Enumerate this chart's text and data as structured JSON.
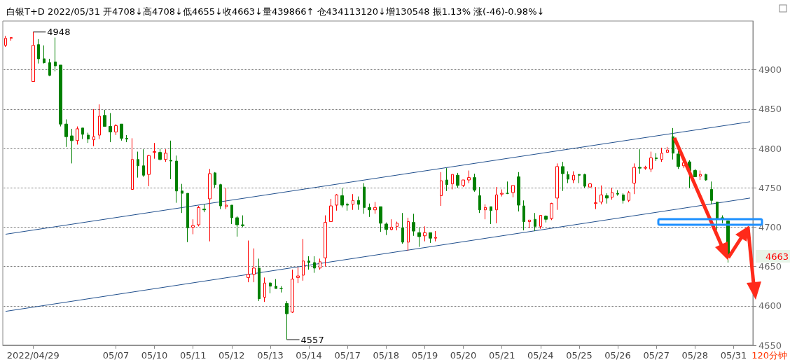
{
  "chart_data": {
    "type": "candlestick",
    "title": "白银T+D 2022/05/31 开4708↓高4708↓低4655↓收4663↓量439866↑ 仓434113120↓增130548 振1.13% 涨(-46)-0.98%↓",
    "categories": [
      null,
      null,
      null,
      null,
      null,
      "2022/04/29",
      null,
      null,
      null,
      null,
      null,
      null,
      null,
      null,
      null,
      null,
      null,
      null,
      null,
      null,
      "05/07",
      null,
      null,
      null,
      null,
      null,
      null,
      "05/10",
      null,
      null,
      null,
      null,
      null,
      null,
      "05/11",
      null,
      null,
      null,
      null,
      null,
      null,
      "05/12",
      null,
      null,
      null,
      null,
      null,
      null,
      "05/13",
      null,
      null,
      null,
      null,
      null,
      null,
      "05/14",
      null,
      null,
      null,
      null,
      null,
      null,
      "05/17",
      null,
      null,
      null,
      null,
      null,
      null,
      "05/18",
      null,
      null,
      null,
      null,
      null,
      null,
      "05/19",
      null,
      null,
      null,
      null,
      null,
      null,
      "05/20",
      null,
      null,
      null,
      null,
      null,
      null,
      "05/21",
      null,
      null,
      null,
      null,
      null,
      null,
      "05/24",
      null,
      null,
      null,
      null,
      null,
      null,
      "05/25",
      null,
      null,
      null,
      null,
      null,
      null,
      "05/26",
      null,
      null,
      null,
      null,
      null,
      null,
      "05/27",
      null,
      null,
      null,
      null,
      null,
      null,
      "05/28",
      null,
      null,
      null,
      null,
      null,
      null,
      "05/31",
      null,
      null,
      null
    ],
    "ohlc": [
      [
        4931,
        4943,
        4929,
        4940
      ],
      [
        4940,
        4941,
        4937,
        4941
      ],
      null,
      null,
      null,
      [
        4885,
        4948,
        4885,
        4931
      ],
      [
        4932,
        4939,
        4908,
        4914
      ],
      [
        4914,
        4931,
        4908,
        4909
      ],
      [
        4909,
        4914,
        4892,
        4893
      ],
      [
        4910,
        4941,
        4898,
        4905
      ],
      [
        4906,
        4906,
        4828,
        4831
      ],
      [
        4831,
        4837,
        4802,
        4815
      ],
      [
        4816,
        4825,
        4781,
        4810
      ],
      [
        4810,
        4828,
        4805,
        4825
      ],
      [
        4826,
        4826,
        4812,
        4818
      ],
      [
        4817,
        4820,
        4807,
        4812
      ],
      [
        4811,
        4850,
        4803,
        4815
      ],
      [
        4817,
        4856,
        4812,
        4841
      ],
      [
        4842,
        4849,
        4828,
        4828
      ],
      [
        4828,
        4845,
        4808,
        4821
      ],
      [
        4821,
        4831,
        4817,
        4829
      ],
      [
        4831,
        4831,
        4810,
        4813
      ],
      [
        4813,
        4817,
        4808,
        4812
      ],
      [
        4748,
        4813,
        4748,
        4786
      ],
      [
        4786,
        4796,
        4763,
        4778
      ],
      [
        4778,
        4799,
        4764,
        4766
      ],
      [
        4767,
        4792,
        4752,
        4791
      ],
      [
        4795,
        4807,
        4787,
        4796
      ],
      [
        4795,
        4800,
        4785,
        4786
      ],
      [
        4786,
        4799,
        4783,
        4794
      ],
      [
        4785,
        4810,
        4761,
        4784
      ],
      [
        4784,
        4791,
        4731,
        4746
      ],
      [
        4746,
        4755,
        4718,
        4743
      ],
      [
        4743,
        4743,
        4681,
        4699
      ],
      [
        4700,
        4710,
        4691,
        4702
      ],
      [
        4703,
        4727,
        4701,
        4725
      ],
      [
        4723,
        4729,
        4719,
        4722
      ],
      [
        4736,
        4774,
        4682,
        4768
      ],
      [
        4769,
        4770,
        4750,
        4754
      ],
      [
        4754,
        4755,
        4723,
        4727
      ],
      [
        4726,
        4750,
        4723,
        4728
      ],
      [
        4728,
        4728,
        4704,
        4712
      ],
      [
        4712,
        4714,
        4688,
        4703
      ],
      [
        4703,
        4715,
        4700,
        4702
      ],
      [
        4636,
        4683,
        4630,
        4640
      ],
      [
        4640,
        4673,
        4630,
        4648
      ],
      [
        4648,
        4660,
        4606,
        4609
      ],
      [
        4611,
        4636,
        4605,
        4629
      ],
      [
        4629,
        4630,
        4616,
        4625
      ],
      [
        4625,
        4634,
        4622,
        4622
      ],
      [
        4622,
        4625,
        4617,
        4622
      ],
      [
        4603,
        4606,
        4557,
        4590
      ],
      [
        4592,
        4646,
        4591,
        4634
      ],
      [
        4636,
        4649,
        4629,
        4638
      ],
      [
        4639,
        4685,
        4632,
        4657
      ],
      [
        4657,
        4663,
        4646,
        4655
      ],
      [
        4655,
        4663,
        4642,
        4648
      ],
      [
        4648,
        4660,
        4646,
        4656
      ],
      [
        4661,
        4715,
        4650,
        4706
      ],
      [
        4707,
        4736,
        4707,
        4727
      ],
      [
        4728,
        4742,
        4721,
        4741
      ],
      [
        4740,
        4750,
        4725,
        4728
      ],
      [
        4729,
        4731,
        4721,
        4728
      ],
      [
        4729,
        4742,
        4722,
        4734
      ],
      [
        4734,
        4739,
        4722,
        4729
      ],
      [
        4751,
        4756,
        4717,
        4725
      ],
      [
        4725,
        4730,
        4713,
        4722
      ],
      [
        4722,
        4732,
        4717,
        4725
      ],
      [
        4726,
        4726,
        4694,
        4705
      ],
      [
        4704,
        4706,
        4690,
        4697
      ],
      [
        4697,
        4710,
        4696,
        4700
      ],
      [
        4701,
        4707,
        4696,
        4705
      ],
      [
        4699,
        4718,
        4679,
        4681
      ],
      [
        4681,
        4712,
        4670,
        4707
      ],
      [
        4706,
        4717,
        4689,
        4695
      ],
      [
        4693,
        4700,
        4675,
        4688
      ],
      [
        4689,
        4701,
        4682,
        4693
      ],
      [
        4693,
        4693,
        4680,
        4686
      ],
      [
        4686,
        4695,
        4682,
        4687
      ],
      [
        4740,
        4770,
        4727,
        4759
      ],
      [
        4760,
        4775,
        4746,
        4754
      ],
      [
        4755,
        4767,
        4748,
        4767
      ],
      [
        4766,
        4769,
        4750,
        4753
      ],
      [
        4753,
        4760,
        4751,
        4760
      ],
      [
        4760,
        4772,
        4756,
        4763
      ],
      [
        4763,
        4768,
        4745,
        4747
      ],
      [
        4740,
        4751,
        4718,
        4722
      ],
      [
        4722,
        4729,
        4710,
        4725
      ],
      [
        4726,
        4726,
        4704,
        4721
      ],
      [
        4722,
        4751,
        4705,
        4741
      ],
      [
        4742,
        4748,
        4739,
        4743
      ],
      [
        4743,
        4758,
        4742,
        4743
      ],
      [
        4744,
        4753,
        4738,
        4753
      ],
      [
        4764,
        4770,
        4720,
        4728
      ],
      [
        4727,
        4734,
        4696,
        4707
      ],
      [
        4707,
        4709,
        4699,
        4709
      ],
      [
        4710,
        4718,
        4695,
        4701
      ],
      [
        4701,
        4715,
        4698,
        4715
      ],
      [
        4714,
        4715,
        4706,
        4710
      ],
      [
        4711,
        4731,
        4709,
        4730
      ],
      [
        4737,
        4781,
        4722,
        4777
      ],
      [
        4777,
        4783,
        4746,
        4768
      ],
      [
        4767,
        4771,
        4756,
        4761
      ],
      [
        4760,
        4771,
        4756,
        4766
      ],
      [
        4767,
        4767,
        4756,
        4766
      ],
      [
        4767,
        4768,
        4750,
        4752
      ],
      [
        4751,
        4756,
        4751,
        4755
      ],
      [
        4730,
        4751,
        4723,
        4731
      ],
      [
        4732,
        4753,
        4729,
        4741
      ],
      [
        4740,
        4743,
        4730,
        4737
      ],
      [
        4738,
        4750,
        4735,
        4744
      ],
      [
        4743,
        4747,
        4740,
        4742
      ],
      [
        4741,
        4743,
        4730,
        4734
      ],
      [
        4734,
        4746,
        4732,
        4744
      ],
      [
        4756,
        4781,
        4742,
        4776
      ],
      [
        4776,
        4799,
        4768,
        4775
      ],
      [
        4775,
        4778,
        4773,
        4776
      ],
      [
        4774,
        4796,
        4770,
        4788
      ],
      [
        4788,
        4794,
        4784,
        4787
      ],
      [
        4786,
        4801,
        4783,
        4794
      ],
      [
        4795,
        4802,
        4795,
        4798
      ],
      [
        4815,
        4826,
        4786,
        4794
      ],
      [
        4793,
        4797,
        4774,
        4777
      ],
      [
        4778,
        4782,
        4775,
        4782
      ],
      [
        4783,
        4785,
        4750,
        4772
      ],
      [
        4772,
        4774,
        4764,
        4764
      ],
      [
        4765,
        4772,
        4760,
        4767
      ],
      [
        4767,
        4768,
        4759,
        4760
      ],
      [
        4748,
        4758,
        4729,
        4734
      ],
      [
        4732,
        4732,
        4697,
        4711
      ],
      [
        4712,
        4715,
        4705,
        4711
      ],
      [
        4708,
        4708,
        4655,
        4663
      ],
      null,
      null,
      null,
      null
    ],
    "colors": [
      "#ff0000",
      "#ff0000",
      null,
      null,
      null,
      "#ff0000",
      "#008000",
      "#008000",
      "#008000",
      "#008000",
      "#008000",
      "#008000",
      "#008000",
      "#ff0000",
      "#008000",
      "#008000",
      "#ff0000",
      "#ff0000",
      "#008000",
      "#008000",
      "#ff0000",
      "#008000",
      "#008000",
      "#ff0000",
      "#008000",
      "#008000",
      "#ff0000",
      "#ff0000",
      "#008000",
      "#ff0000",
      "#008000",
      "#008000",
      "#008000",
      "#008000",
      "#ff0000",
      "#ff0000",
      "#008000",
      "#ff0000",
      "#008000",
      "#008000",
      "#ff0000",
      "#008000",
      "#008000",
      "#008000",
      "#ff0000",
      "#ff0000",
      "#008000",
      "#ff0000",
      "#008000",
      "#008000",
      "#008000",
      "#008000",
      "#ff0000",
      "#ff0000",
      "#ff0000",
      "#008000",
      "#008000",
      "#ff0000",
      "#ff0000",
      "#ff0000",
      "#ff0000",
      "#008000",
      "#008000",
      "#ff0000",
      "#008000",
      "#008000",
      "#008000",
      "#ff0000",
      "#008000",
      "#008000",
      "#ff0000",
      "#ff0000",
      "#008000",
      "#ff0000",
      "#008000",
      "#008000",
      "#ff0000",
      "#008000",
      "#ff0000",
      "#ff0000",
      "#008000",
      "#ff0000",
      "#008000",
      "#ff0000",
      "#ff0000",
      "#008000",
      "#008000",
      "#ff0000",
      "#008000",
      "#ff0000",
      "#ff0000",
      "#008000",
      "#ff0000",
      "#008000",
      "#008000",
      "#ff0000",
      "#008000",
      "#ff0000",
      "#008000",
      "#ff0000",
      "#ff0000",
      "#008000",
      "#008000",
      "#ff0000",
      "#008000",
      "#008000",
      "#ff0000",
      "#ff0000",
      "#ff0000",
      "#008000",
      "#ff0000",
      "#008000",
      "#008000",
      "#ff0000",
      "#ff0000",
      "#008000",
      "#ff0000",
      "#ff0000",
      "#008000",
      "#ff0000",
      "#ff0000",
      "#008000",
      "#008000",
      "#ff0000",
      "#008000",
      "#008000",
      "#ff0000",
      "#008000",
      "#008000",
      "#008000",
      "#008000",
      "#008000",
      null,
      null,
      null,
      null
    ],
    "series": [
      {
        "type": "line",
        "color": "#1f4e8c",
        "values": [
          4691,
          null,
          null,
          null,
          null,
          null,
          null,
          null,
          null,
          null,
          null,
          null,
          null,
          null,
          null,
          null,
          null,
          null,
          null,
          null,
          null,
          null,
          null,
          null,
          null,
          null,
          null,
          null,
          null,
          null,
          null,
          null,
          null,
          null,
          null,
          null,
          null,
          null,
          null,
          null,
          null,
          null,
          null,
          null,
          null,
          null,
          null,
          null,
          null,
          null,
          null,
          null,
          null,
          null,
          null,
          null,
          null,
          null,
          null,
          null,
          null,
          null,
          null,
          null,
          null,
          null,
          null,
          null,
          null,
          null,
          null,
          null,
          null,
          null,
          null,
          null,
          null,
          null,
          null,
          null,
          null,
          null,
          null,
          null,
          null,
          null,
          null,
          null,
          null,
          null,
          null,
          null,
          null,
          null,
          null,
          null,
          null,
          null,
          null,
          null,
          null,
          null,
          null,
          null,
          null,
          null,
          null,
          null,
          null,
          null,
          null,
          null,
          null,
          null,
          null,
          null,
          null,
          null,
          null,
          null,
          null,
          null,
          null,
          null,
          null,
          null,
          null,
          null,
          null,
          null,
          null,
          null,
          null,
          null,
          null,
          4834
        ]
      },
      {
        "type": "line",
        "color": "#1f4e8c",
        "values": [
          4593,
          null,
          null,
          null,
          null,
          null,
          null,
          null,
          null,
          null,
          null,
          null,
          null,
          null,
          null,
          null,
          null,
          null,
          null,
          null,
          null,
          null,
          null,
          null,
          null,
          null,
          null,
          null,
          null,
          null,
          null,
          null,
          null,
          null,
          null,
          null,
          null,
          null,
          null,
          null,
          null,
          null,
          null,
          null,
          null,
          null,
          null,
          null,
          null,
          null,
          null,
          null,
          null,
          null,
          null,
          null,
          null,
          null,
          null,
          null,
          null,
          null,
          null,
          null,
          null,
          null,
          null,
          null,
          null,
          null,
          null,
          null,
          null,
          null,
          null,
          null,
          null,
          null,
          null,
          null,
          null,
          null,
          null,
          null,
          null,
          null,
          null,
          null,
          null,
          null,
          null,
          null,
          null,
          null,
          null,
          null,
          null,
          null,
          null,
          null,
          null,
          null,
          null,
          null,
          null,
          null,
          null,
          null,
          null,
          null,
          null,
          null,
          null,
          null,
          null,
          null,
          null,
          null,
          null,
          null,
          null,
          null,
          null,
          null,
          null,
          null,
          null,
          null,
          null,
          null,
          null,
          null,
          null,
          null,
          null,
          4737
        ]
      }
    ],
    "ylim": [
      4550,
      4962
    ],
    "yticks": [
      4550,
      4600,
      4650,
      4700,
      4750,
      4800,
      4850,
      4900
    ],
    "grid": "y",
    "annotations": [
      {
        "text": "4948",
        "x": "2022/04/29",
        "y": 4948
      },
      "4557",
      "4663",
      "120分钟"
    ]
  }
}
